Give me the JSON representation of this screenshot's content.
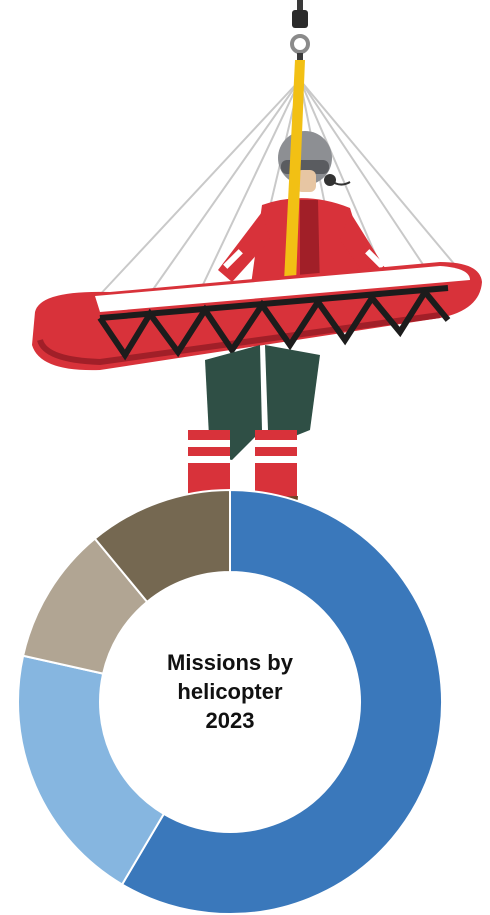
{
  "chart_data": {
    "type": "pie",
    "style": "donut",
    "center_label_lines": [
      "Missions by",
      "helicopter",
      "2023"
    ],
    "legend": "none",
    "slices": [
      {
        "value": 58.5,
        "color": "#3a78bb"
      },
      {
        "value": 20.0,
        "color": "#86b6e0"
      },
      {
        "value": 10.5,
        "color": "#b1a593"
      },
      {
        "value": 11.0,
        "color": "#756851"
      }
    ]
  },
  "colors": {
    "suit_red": "#d8323a",
    "suit_dark_red": "#a11f28",
    "pants_green": "#2f4f45",
    "boot_brown": "#6b4526",
    "strap_yellow": "#f2c014",
    "rope_gray": "#c9c9c9",
    "strap_black": "#1c1c1c"
  },
  "illustration": {
    "icon": "rescue-winch-stretcher-icon"
  }
}
